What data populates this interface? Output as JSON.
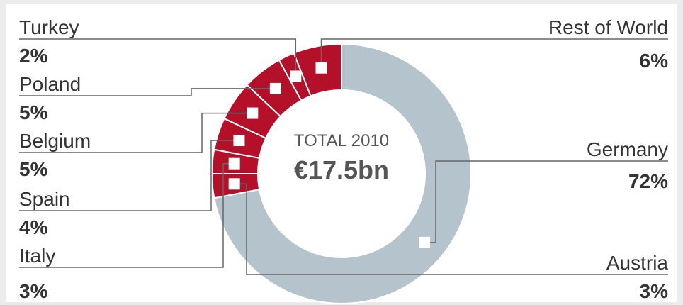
{
  "chart_data": {
    "type": "donut",
    "center_title": "TOTAL 2010",
    "center_value": "€17.5bn",
    "categories": [
      "Germany",
      "Austria",
      "Italy",
      "Spain",
      "Belgium",
      "Poland",
      "Turkey",
      "Rest of World"
    ],
    "values": [
      72,
      3,
      3,
      4,
      5,
      5,
      2,
      6
    ],
    "value_labels": [
      "72%",
      "3%",
      "3%",
      "4%",
      "5%",
      "5%",
      "2%",
      "6%"
    ],
    "colors": [
      "#b5c3cc",
      "#b5102a",
      "#b5102a",
      "#b5102a",
      "#b5102a",
      "#b5102a",
      "#b5102a",
      "#b5102a"
    ]
  }
}
